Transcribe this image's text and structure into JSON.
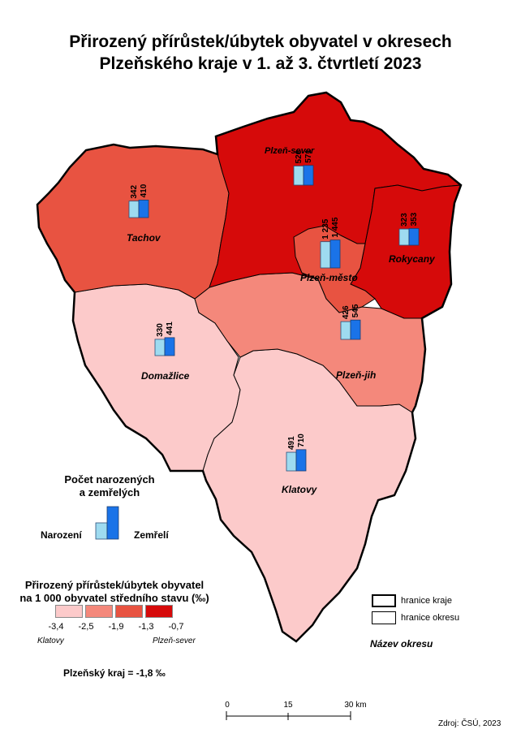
{
  "title": {
    "line1": "Přirozený přírůstek/úbytek obyvatel v okresech",
    "line2": "Plzeňského kraje v 1. až 3. čtvrtletí 2023"
  },
  "colors": {
    "class1": "#fccaca",
    "class2": "#f4887b",
    "class3": "#e85341",
    "class4": "#d60a0a",
    "births": "#9edbf0",
    "deaths": "#1a73e8",
    "border": "#000000"
  },
  "districts": [
    {
      "key": "tachov",
      "name": "Tachov",
      "births": "342",
      "deaths": "410"
    },
    {
      "key": "plzen_sever",
      "name": "Plzeň-sever",
      "births": "526",
      "deaths": "571"
    },
    {
      "key": "plzen_mesto",
      "name": "Plzeň-město",
      "births": "1 235",
      "deaths": "1 445"
    },
    {
      "key": "rokycany",
      "name": "Rokycany",
      "births": "323",
      "deaths": "353"
    },
    {
      "key": "domazlice",
      "name": "Domažlice",
      "births": "330",
      "deaths": "441"
    },
    {
      "key": "plzen_jih",
      "name": "Plzeň-jih",
      "births": "426",
      "deaths": "545"
    },
    {
      "key": "klatovy",
      "name": "Klatovy",
      "births": "491",
      "deaths": "710"
    }
  ],
  "legend_births": {
    "title_line1": "Počet narozených",
    "title_line2": "a zemřelých",
    "births_label": "Narození",
    "deaths_label": "Zemřelí"
  },
  "legend_rate": {
    "title_line1": "Přirozený přírůstek/úbytek obyvatel",
    "title_line2": "na 1 000 obyvatel středního stavu (‰)",
    "breaks": [
      "-3,4",
      "-2,5",
      "-1,9",
      "-1,3",
      "-0,7"
    ],
    "min_label": "Klatovy",
    "max_label": "Plzeň-sever"
  },
  "region_total": "Plzeňský kraj = -1,8 ‰",
  "boundary_legend": {
    "region": "hranice kraje",
    "district": "hranice okresu",
    "district_name": "Název okresu"
  },
  "scale": {
    "labels": [
      "0",
      "15",
      "30 km"
    ]
  },
  "source": "Zdroj: ČSÚ, 2023"
}
